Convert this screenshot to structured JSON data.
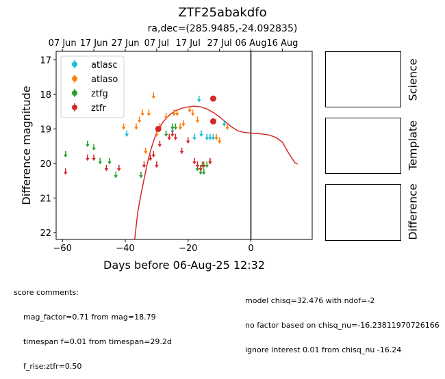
{
  "title": "ZTF25abakdfo",
  "subtitle": "ra,dec=(285.9485,-24.092835)",
  "chart_data": {
    "type": "scatter",
    "xlabel": "Days before 06-Aug-25 12:32",
    "ylabel": "Difference magnitude",
    "xlim": [
      -62,
      19.5
    ],
    "ylim": [
      22.2,
      16.75
    ],
    "y_inverted": true,
    "x_ticks": [
      -60,
      -40,
      -20,
      0
    ],
    "x_tick_labels": [
      "−60",
      "−40",
      "−20",
      "0"
    ],
    "y_ticks": [
      17,
      18,
      19,
      20,
      21,
      22
    ],
    "top_axis_ticks": [
      -60,
      -50,
      -40,
      -30,
      -20,
      -10,
      0,
      10
    ],
    "top_axis_labels": [
      "07 Jun",
      "17 Jun",
      "27 Jun",
      "07 Jul",
      "17 Jul",
      "27 Jul",
      "06 Aug",
      "16 Aug"
    ],
    "vline_x": 0,
    "legend_position": "upper left",
    "legend": [
      {
        "name": "atlasc",
        "color": "#17becf"
      },
      {
        "name": "atlaso",
        "color": "#ff7f0e"
      },
      {
        "name": "ztfg",
        "color": "#2ca02c"
      },
      {
        "name": "ztfr",
        "color": "#d62728"
      }
    ],
    "series": [
      {
        "name": "atlasc",
        "color": "#17becf",
        "kind": "upper_limit",
        "points": [
          [
            -39.5,
            19.1
          ],
          [
            -25,
            19.0
          ],
          [
            -18,
            19.2
          ],
          [
            -16.5,
            18.1
          ],
          [
            -15.8,
            19.1
          ],
          [
            -14,
            19.2
          ],
          [
            -13,
            19.2
          ],
          [
            -12,
            19.2
          ],
          [
            -8.5,
            18.8
          ]
        ]
      },
      {
        "name": "atlaso",
        "color": "#ff7f0e",
        "kind": "upper_limit",
        "points": [
          [
            -40.5,
            18.9
          ],
          [
            -36.5,
            18.9
          ],
          [
            -35.5,
            18.7
          ],
          [
            -34.5,
            18.5
          ],
          [
            -33.5,
            19.6
          ],
          [
            -32.5,
            18.5
          ],
          [
            -31,
            18.0
          ],
          [
            -30,
            19.1
          ],
          [
            -29,
            18.9
          ],
          [
            -27,
            18.6
          ],
          [
            -24.5,
            18.5
          ],
          [
            -23.5,
            18.5
          ],
          [
            -22.5,
            18.9
          ],
          [
            -21.5,
            18.8
          ],
          [
            -19.5,
            18.4
          ],
          [
            -18.5,
            18.5
          ],
          [
            -17,
            18.7
          ],
          [
            -11,
            19.2
          ],
          [
            -10,
            19.3
          ],
          [
            -7.5,
            18.9
          ]
        ]
      },
      {
        "name": "ztfg",
        "color": "#2ca02c",
        "kind": "upper_limit",
        "points": [
          [
            -59,
            19.7
          ],
          [
            -52,
            19.4
          ],
          [
            -50,
            19.5
          ],
          [
            -48,
            19.9
          ],
          [
            -45,
            19.9
          ],
          [
            -43,
            20.3
          ],
          [
            -35,
            20.3
          ],
          [
            -27,
            19.1
          ],
          [
            -25,
            18.9
          ],
          [
            -24,
            18.9
          ],
          [
            -17,
            20.1
          ],
          [
            -16,
            20.2
          ],
          [
            -15.5,
            20.0
          ],
          [
            -15,
            20.2
          ],
          [
            -14,
            20.0
          ],
          [
            -13,
            19.9
          ]
        ]
      },
      {
        "name": "ztfr",
        "color": "#d62728",
        "kind": "upper_limit",
        "points": [
          [
            -59,
            20.2
          ],
          [
            -52,
            19.8
          ],
          [
            -50,
            19.8
          ],
          [
            -46,
            20.1
          ],
          [
            -42,
            20.1
          ],
          [
            -34,
            20.0
          ],
          [
            -32,
            19.8
          ],
          [
            -31,
            19.7
          ],
          [
            -30,
            20.0
          ],
          [
            -29,
            19.4
          ],
          [
            -26,
            19.2
          ],
          [
            -25,
            19.1
          ],
          [
            -24,
            19.2
          ],
          [
            -22,
            19.6
          ],
          [
            -20,
            19.3
          ],
          [
            -18,
            19.9
          ],
          [
            -17,
            20.0
          ],
          [
            -16,
            20.1
          ],
          [
            -15,
            20.0
          ],
          [
            -13,
            19.9
          ]
        ]
      },
      {
        "name": "ztfr",
        "color": "#d62728",
        "kind": "detection",
        "points": [
          [
            -29.5,
            19.0
          ],
          [
            -12,
            18.12
          ],
          [
            -12,
            18.78
          ]
        ]
      }
    ],
    "model_curve": {
      "color": "#d62728",
      "x": [
        -37,
        -36,
        -35,
        -34,
        -33,
        -32,
        -31,
        -30,
        -29,
        -28,
        -26,
        -24,
        -22,
        -20,
        -18,
        -16,
        -14,
        -12,
        -10,
        -8,
        -6,
        -4,
        -2,
        0,
        2,
        4,
        6,
        8,
        10,
        12,
        14,
        15
      ],
      "y": [
        22.2,
        21.4,
        20.9,
        20.45,
        20.0,
        19.65,
        19.35,
        19.1,
        18.95,
        18.8,
        18.6,
        18.47,
        18.4,
        18.36,
        18.34,
        18.36,
        18.42,
        18.52,
        18.65,
        18.8,
        18.95,
        19.06,
        19.1,
        19.12,
        19.13,
        19.15,
        19.18,
        19.25,
        19.38,
        19.7,
        19.98,
        20.02
      ]
    }
  },
  "side_panels": [
    {
      "label": "Science"
    },
    {
      "label": "Template"
    },
    {
      "label": "Difference"
    }
  ],
  "comments": {
    "left": [
      "score comments:",
      "    mag_factor=0.71 from mag=18.79",
      "    timespan f=0.01 from timespan=29.2d",
      "    f_rise:ztfr=0.50"
    ],
    "right": [
      "model chisq=32.476 with ndof=-2",
      "no factor based on chisq_nu=-16.23811970726166",
      "ignore interest 0.01 from chisq_nu -16.24"
    ]
  }
}
